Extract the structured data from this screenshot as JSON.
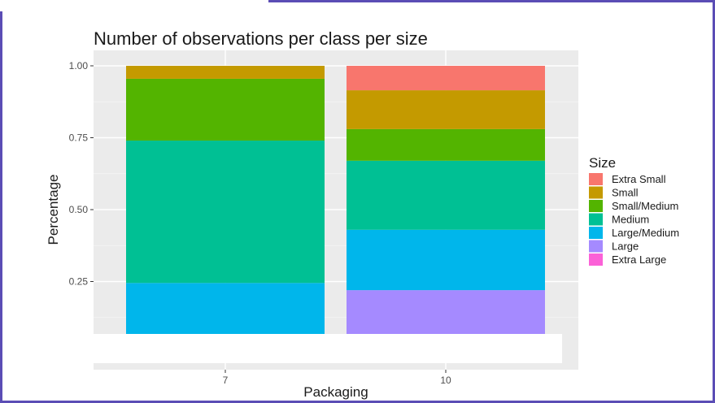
{
  "chart_data": {
    "type": "bar",
    "stacked": true,
    "title": "Number of observations per class per size",
    "xlabel": "Packaging",
    "ylabel": "Percentage",
    "categories": [
      "7",
      "10"
    ],
    "yticks": [
      "0.25",
      "0.50",
      "0.75",
      "1.00"
    ],
    "ylim": [
      0.0,
      1.0
    ],
    "legend_title": "Size",
    "legend_position": "right",
    "series": [
      {
        "name": "Extra Small",
        "color": "#F8766D",
        "values": [
          0.0,
          0.085
        ]
      },
      {
        "name": "Small",
        "color": "#C49A00",
        "values": [
          0.045,
          0.135
        ]
      },
      {
        "name": "Small/Medium",
        "color": "#53B400",
        "values": [
          0.215,
          0.11
        ]
      },
      {
        "name": "Medium",
        "color": "#00C094",
        "values": [
          0.495,
          0.24
        ]
      },
      {
        "name": "Large/Medium",
        "color": "#00B6EB",
        "values": [
          0.245,
          0.21
        ]
      },
      {
        "name": "Large",
        "color": "#A58AFF",
        "values": [
          0.0,
          0.22
        ]
      },
      {
        "name": "Extra Large",
        "color": "#FB61D7",
        "values": [
          0.0,
          0.0
        ]
      }
    ],
    "grid": true,
    "panel_background": "#EBEBEB"
  },
  "frame_color": "#5b4db5"
}
